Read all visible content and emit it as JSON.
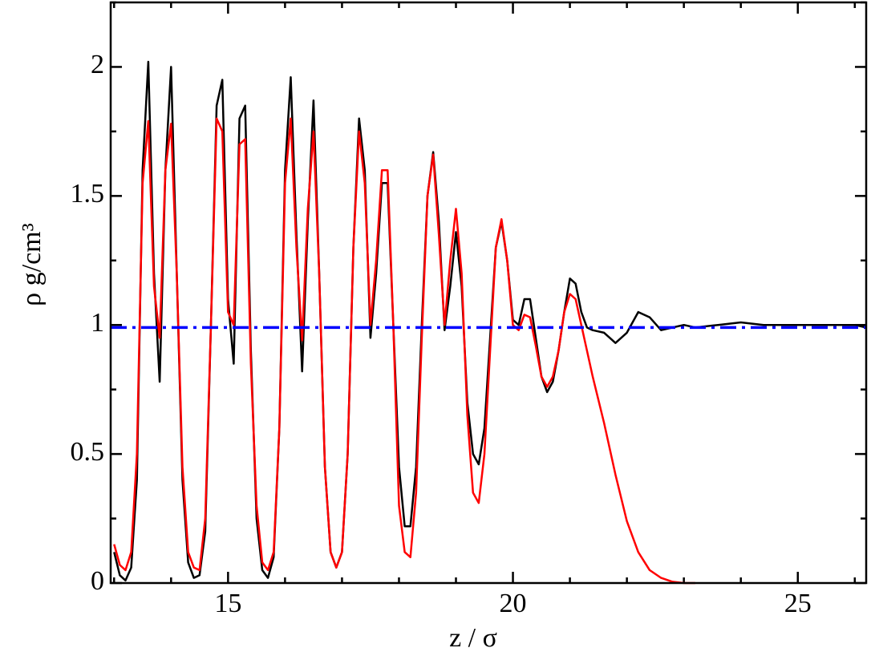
{
  "chart_data": {
    "type": "line",
    "xlabel": "z / σ",
    "ylabel": "ρ g/cm³",
    "xlim": [
      12.94,
      26.2
    ],
    "ylim": [
      0,
      2.25
    ],
    "xticks": [
      15,
      20,
      25
    ],
    "yticks": [
      0,
      0.5,
      1,
      1.5,
      2
    ],
    "xminorticks": [
      13,
      14,
      16,
      17,
      18,
      19,
      21,
      22,
      23,
      24,
      26
    ],
    "yminorticks": [
      0.25,
      0.75,
      1.25,
      1.75,
      2.25
    ],
    "x": [
      13.0,
      13.1,
      13.2,
      13.3,
      13.4,
      13.5,
      13.6,
      13.7,
      13.8,
      13.9,
      14.0,
      14.1,
      14.2,
      14.3,
      14.4,
      14.5,
      14.6,
      14.7,
      14.8,
      14.9,
      15.0,
      15.1,
      15.2,
      15.3,
      15.4,
      15.5,
      15.6,
      15.7,
      15.8,
      15.9,
      16.0,
      16.1,
      16.2,
      16.3,
      16.4,
      16.5,
      16.6,
      16.7,
      16.8,
      16.9,
      17.0,
      17.1,
      17.2,
      17.3,
      17.4,
      17.5,
      17.6,
      17.7,
      17.8,
      17.9,
      18.0,
      18.1,
      18.2,
      18.3,
      18.4,
      18.5,
      18.6,
      18.7,
      18.8,
      18.9,
      19.0,
      19.1,
      19.2,
      19.3,
      19.4,
      19.5,
      19.6,
      19.7,
      19.8,
      19.9,
      20.0,
      20.1,
      20.2,
      20.3,
      20.4,
      20.5,
      20.6,
      20.7,
      20.8,
      20.9,
      21.0,
      21.1,
      21.2,
      21.3,
      21.4,
      21.6,
      21.8,
      22.0,
      22.2,
      22.4,
      22.6,
      22.8,
      23.0,
      23.2,
      23.6,
      24.0,
      24.4,
      24.8,
      25.2,
      25.6,
      26.0,
      26.2
    ],
    "series": [
      {
        "color": "#000000",
        "dash": "none",
        "values": [
          0.12,
          0.03,
          0.01,
          0.06,
          0.4,
          1.6,
          2.02,
          1.2,
          0.78,
          1.6,
          2.0,
          1.2,
          0.4,
          0.08,
          0.02,
          0.03,
          0.2,
          1.0,
          1.85,
          1.95,
          1.1,
          0.85,
          1.8,
          1.85,
          0.9,
          0.25,
          0.05,
          0.02,
          0.1,
          0.6,
          1.6,
          1.96,
          1.35,
          0.82,
          1.4,
          1.87,
          1.2,
          0.45,
          0.12,
          0.06,
          0.12,
          0.5,
          1.3,
          1.8,
          1.6,
          0.95,
          1.2,
          1.55,
          1.55,
          1.0,
          0.45,
          0.22,
          0.22,
          0.45,
          1.0,
          1.5,
          1.67,
          1.4,
          0.98,
          1.15,
          1.36,
          1.15,
          0.7,
          0.5,
          0.46,
          0.6,
          0.95,
          1.3,
          1.4,
          1.25,
          1.02,
          1.0,
          1.1,
          1.1,
          0.95,
          0.8,
          0.74,
          0.78,
          0.9,
          1.05,
          1.18,
          1.16,
          1.05,
          0.99,
          0.98,
          0.97,
          0.93,
          0.97,
          1.05,
          1.03,
          0.98,
          0.99,
          1.0,
          0.99,
          1.0,
          1.01,
          1.0,
          1.0,
          1.0,
          1.0,
          1.0,
          0.99
        ]
      },
      {
        "color": "#ff0000",
        "dash": "none",
        "values": [
          0.15,
          0.07,
          0.05,
          0.12,
          0.5,
          1.55,
          1.79,
          1.15,
          0.95,
          1.6,
          1.78,
          1.2,
          0.45,
          0.12,
          0.06,
          0.05,
          0.25,
          1.0,
          1.8,
          1.75,
          1.05,
          1.0,
          1.7,
          1.72,
          0.85,
          0.3,
          0.08,
          0.05,
          0.12,
          0.6,
          1.55,
          1.8,
          1.3,
          0.94,
          1.45,
          1.75,
          1.2,
          0.45,
          0.12,
          0.06,
          0.12,
          0.5,
          1.3,
          1.75,
          1.55,
          1.0,
          1.25,
          1.6,
          1.6,
          1.0,
          0.3,
          0.12,
          0.1,
          0.35,
          0.95,
          1.5,
          1.66,
          1.35,
          1.0,
          1.25,
          1.45,
          1.2,
          0.65,
          0.35,
          0.31,
          0.5,
          0.9,
          1.3,
          1.41,
          1.25,
          1.0,
          0.98,
          1.04,
          1.03,
          0.92,
          0.8,
          0.76,
          0.8,
          0.9,
          1.05,
          1.12,
          1.1,
          1.0,
          0.9,
          0.8,
          0.62,
          0.42,
          0.24,
          0.12,
          0.05,
          0.02,
          0.005,
          0.0,
          0.0,
          null,
          null,
          null,
          null,
          null,
          null,
          null,
          null
        ]
      },
      {
        "color": "#0000ff",
        "dash": "dashdot",
        "x": [
          12.94,
          26.2
        ],
        "values": [
          0.99,
          0.99
        ]
      }
    ]
  }
}
